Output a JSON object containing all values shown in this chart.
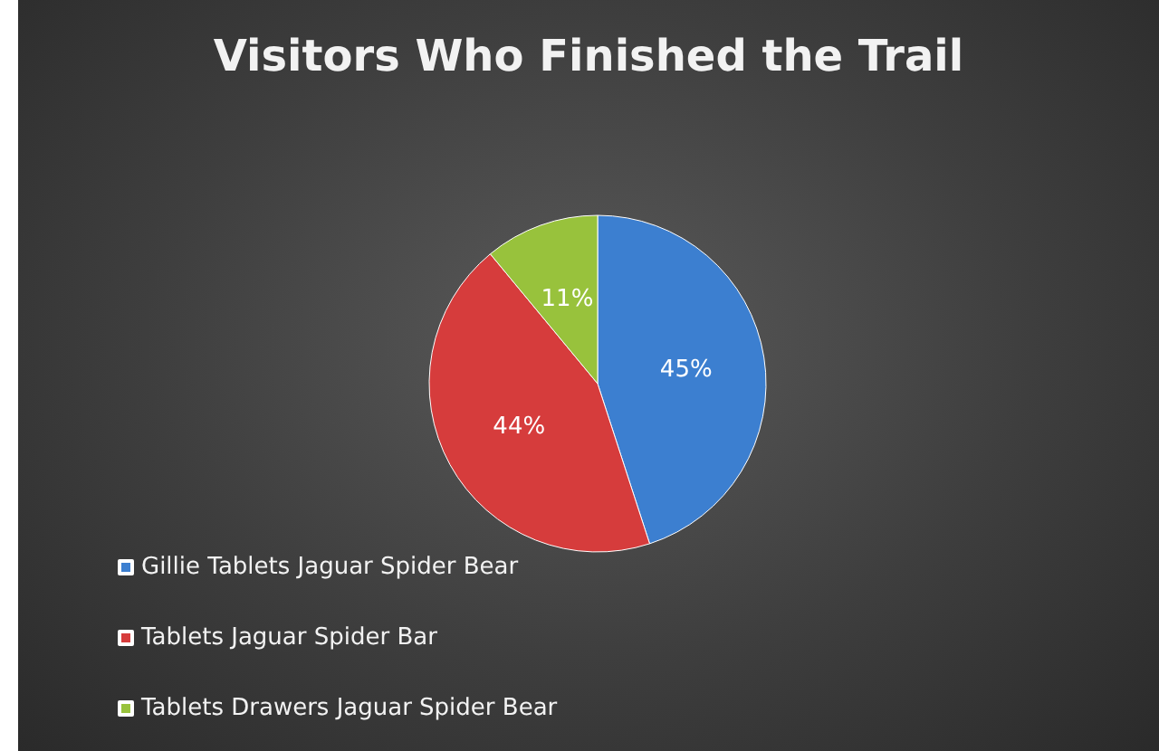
{
  "chart_data": {
    "type": "pie",
    "title": "Visitors Who Finished the Trail",
    "categories": [
      "Gillie Tablets Jaguar Spider Bear",
      "Tablets Jaguar Spider Bar",
      "Tablets Drawers Jaguar Spider Bear"
    ],
    "values": [
      45,
      44,
      11
    ],
    "value_labels": [
      "45%",
      "44%",
      "11%"
    ],
    "colors": [
      "#3c7fd0",
      "#d63c3c",
      "#98c23c"
    ],
    "legend": "bottom left"
  }
}
